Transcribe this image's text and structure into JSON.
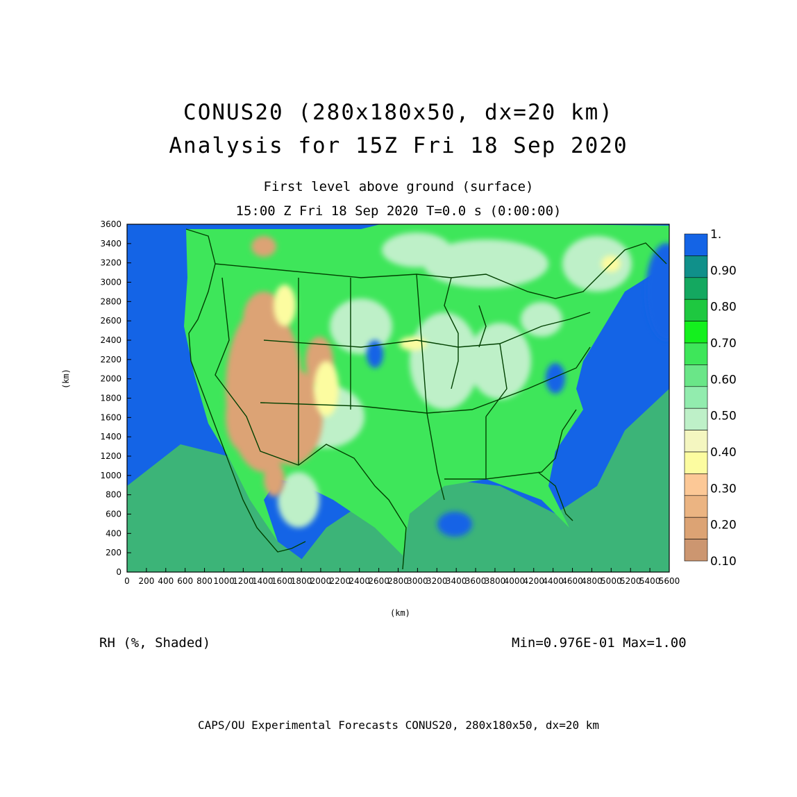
{
  "header": {
    "title_line1": "CONUS20 (280x180x50, dx=20 km)",
    "title_line2": "Analysis for 15Z Fri 18 Sep 2020",
    "level": "First level above ground (surface)",
    "time": "15:00 Z Fri 18 Sep 2020    T=0.0 s (0:00:00)"
  },
  "axes": {
    "xlabel": "(km)",
    "ylabel": "(km)",
    "x_ticks": [
      "0",
      "200",
      "400",
      "600",
      "800",
      "1000",
      "1200",
      "1400",
      "1600",
      "1800",
      "2000",
      "2200",
      "2400",
      "2600",
      "2800",
      "3000",
      "3200",
      "3400",
      "3600",
      "3800",
      "4000",
      "4200",
      "4400",
      "4600",
      "4800",
      "5000",
      "5200",
      "5400",
      "5600"
    ],
    "y_ticks": [
      "0",
      "200",
      "400",
      "600",
      "800",
      "1000",
      "1200",
      "1400",
      "1600",
      "1800",
      "2000",
      "2200",
      "2400",
      "2600",
      "2800",
      "3000",
      "3200",
      "3400",
      "3600"
    ],
    "xlim": [
      0,
      5600
    ],
    "ylim": [
      0,
      3600
    ]
  },
  "colorbar": {
    "labels": [
      "1.",
      "0.90",
      "0.80",
      "0.70",
      "0.60",
      "0.50",
      "0.40",
      "0.30",
      "0.20",
      "0.10"
    ],
    "colors": [
      "#1464e6",
      "#10908a",
      "#14a860",
      "#1ec840",
      "#14f01e",
      "#3ee65a",
      "#6ae688",
      "#92ecae",
      "#bef0c8",
      "#f4f6c0",
      "#fcfca0",
      "#fcc896",
      "#ebb482",
      "#dca374",
      "#cc9670"
    ]
  },
  "map_colors": {
    "ocean": "#1464e6",
    "offshore": "#3cb478",
    "land_green": "#3ee65a",
    "pale_green": "#bef0c8",
    "dry_tan": "#dca374",
    "light_tan": "#ebb482",
    "yellow": "#fcfca0",
    "borders": "#004000"
  },
  "footer": {
    "variable": "RH (%, Shaded)",
    "minmax": "Min=0.976E-01  Max=1.00",
    "credit": "CAPS/OU Experimental Forecasts  CONUS20, 280x180x50, dx=20 km"
  }
}
